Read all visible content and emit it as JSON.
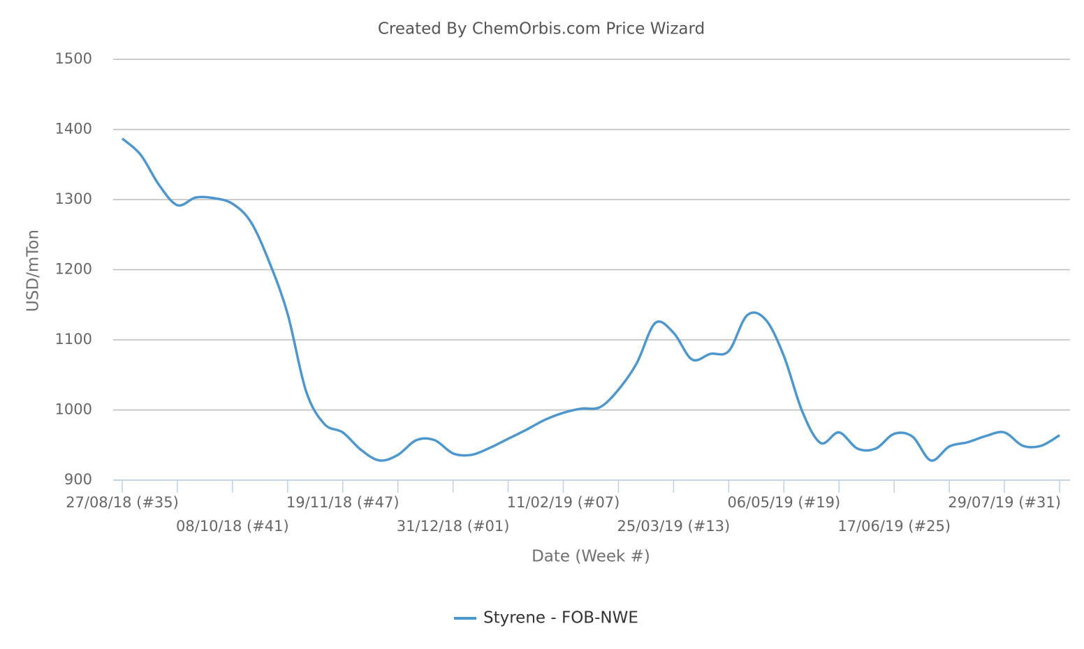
{
  "chart_data": {
    "type": "line",
    "title": "Created By ChemOrbis.com Price Wizard",
    "x_label": "Date (Week #)",
    "y_label": "USD/mTon",
    "categories": [
      "27/08/18 (#35)",
      null,
      null,
      null,
      null,
      null,
      "08/10/18 (#41)",
      null,
      null,
      null,
      null,
      null,
      "19/11/18 (#47)",
      null,
      null,
      null,
      null,
      null,
      "31/12/18 (#01)",
      null,
      null,
      null,
      null,
      null,
      "11/02/19 (#07)",
      null,
      null,
      null,
      null,
      null,
      "25/03/19 (#13)",
      null,
      null,
      null,
      null,
      null,
      "06/05/19 (#19)",
      null,
      null,
      null,
      null,
      null,
      "17/06/19 (#25)",
      null,
      null,
      null,
      null,
      null,
      "29/07/19 (#31)",
      null,
      null,
      null
    ],
    "series": [
      {
        "name": "Styrene - FOB-NWE",
        "color": "#4e97cc",
        "values": [
          1387,
          1364,
          1321,
          1292,
          1303,
          1302,
          1294,
          1268,
          1211,
          1137,
          1027,
          980,
          968,
          943,
          928,
          936,
          957,
          957,
          938,
          936,
          946,
          959,
          972,
          986,
          996,
          1002,
          1004,
          1029,
          1067,
          1124,
          1110,
          1072,
          1080,
          1084,
          1135,
          1129,
          1077,
          998,
          953,
          968,
          945,
          945,
          966,
          962,
          928,
          948,
          954,
          963,
          968,
          949,
          949,
          964
        ]
      }
    ],
    "ylim": [
      900,
      1500
    ],
    "yticks": [
      900,
      1000,
      1100,
      1200,
      1300,
      1400,
      1500
    ],
    "grid": true,
    "legend": "bottom"
  }
}
